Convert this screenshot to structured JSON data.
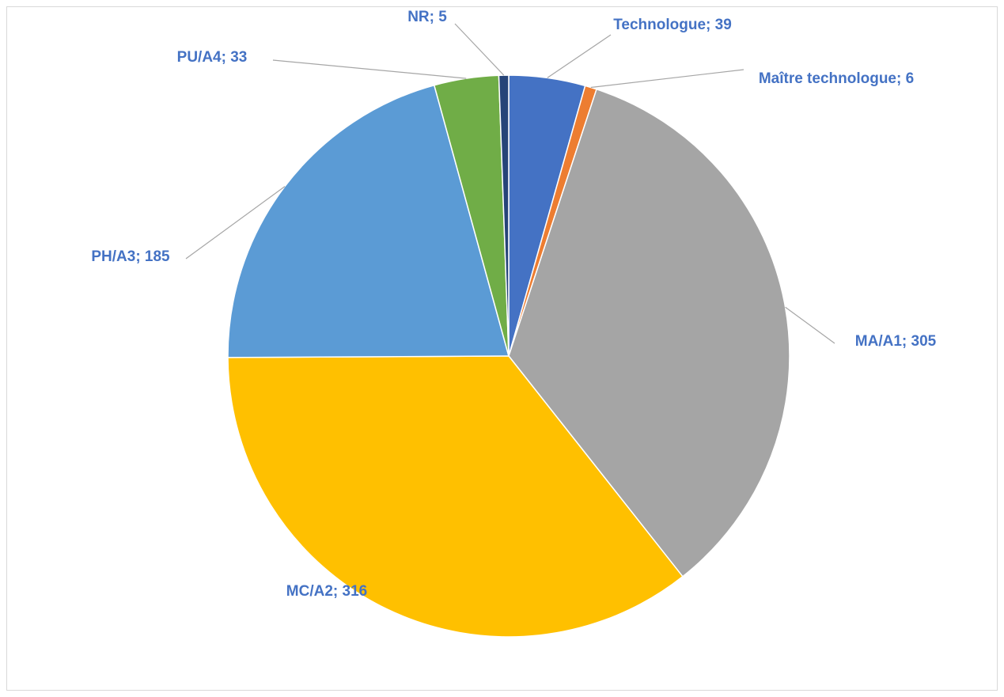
{
  "chart_data": {
    "type": "pie",
    "categories": [
      "Technologue",
      "Maître technologue",
      "MA/A1",
      "MC/A2",
      "PH/A3",
      "PU/A4",
      "NR"
    ],
    "values": [
      39,
      6,
      305,
      316,
      185,
      33,
      5
    ],
    "value_labels": [
      "Technologue; 39",
      "Maître technologue; 6",
      "MA/A1; 305",
      "MC/A2; 316",
      "PH/A3; 185",
      "PU/A4; 33",
      "NR; 5"
    ],
    "colors": [
      "#4472c4",
      "#ed7d31",
      "#a5a5a5",
      "#ffc000",
      "#5b9bd5",
      "#70ad47",
      "#264478"
    ]
  }
}
